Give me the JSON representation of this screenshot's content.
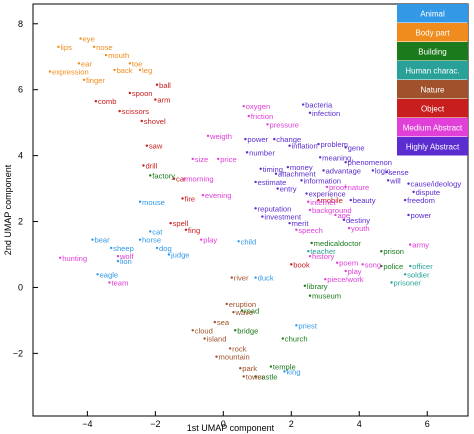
{
  "chart_data": {
    "type": "scatter",
    "xlabel": "1st UMAP component",
    "ylabel": "2nd UMAP component",
    "xlim": [
      -5.6,
      7.2
    ],
    "ylim": [
      -3.9,
      8.6
    ],
    "xticks": [
      -4,
      -2,
      0,
      2,
      4,
      6
    ],
    "yticks": [
      -2,
      0,
      2,
      4,
      6,
      8
    ],
    "grid": false,
    "legend_position": "top-right",
    "series": [
      {
        "name": "Animal",
        "color": "#3399e6",
        "points": [
          {
            "label": "mouse",
            "x": -2.45,
            "y": 2.6
          },
          {
            "label": "cat",
            "x": -2.15,
            "y": 1.7
          },
          {
            "label": "horse",
            "x": -2.45,
            "y": 1.45
          },
          {
            "label": "sheep",
            "x": -3.3,
            "y": 1.2
          },
          {
            "label": "dog",
            "x": -1.95,
            "y": 1.2
          },
          {
            "label": "bear",
            "x": -3.85,
            "y": 1.45
          },
          {
            "label": "lion",
            "x": -3.1,
            "y": 0.8
          },
          {
            "label": "eagle",
            "x": -3.7,
            "y": 0.4
          },
          {
            "label": "duck",
            "x": 0.95,
            "y": 0.3
          },
          {
            "label": "child",
            "x": 0.45,
            "y": 1.4
          },
          {
            "label": "judge",
            "x": -1.6,
            "y": 1.0
          },
          {
            "label": "priest",
            "x": 2.15,
            "y": -1.15
          },
          {
            "label": "king",
            "x": 1.8,
            "y": -2.55
          }
        ]
      },
      {
        "name": "Body part",
        "color": "#f08c1e",
        "points": [
          {
            "label": "eye",
            "x": -4.2,
            "y": 7.55
          },
          {
            "label": "lips",
            "x": -4.85,
            "y": 7.3
          },
          {
            "label": "nose",
            "x": -3.8,
            "y": 7.3
          },
          {
            "label": "mouth",
            "x": -3.45,
            "y": 7.05
          },
          {
            "label": "ear",
            "x": -4.25,
            "y": 6.8
          },
          {
            "label": "toe",
            "x": -2.75,
            "y": 6.8
          },
          {
            "label": "expression",
            "x": -5.1,
            "y": 6.55
          },
          {
            "label": "back",
            "x": -3.2,
            "y": 6.6
          },
          {
            "label": "leg",
            "x": -2.45,
            "y": 6.6
          },
          {
            "label": "finger",
            "x": -4.1,
            "y": 6.3
          }
        ]
      },
      {
        "name": "Building",
        "color": "#1b7a1b",
        "points": [
          {
            "label": "factory",
            "x": -2.15,
            "y": 3.4
          },
          {
            "label": "road",
            "x": 0.55,
            "y": -0.7
          },
          {
            "label": "bridge",
            "x": 0.35,
            "y": -1.3
          },
          {
            "label": "church",
            "x": 1.75,
            "y": -1.55
          },
          {
            "label": "temple",
            "x": 1.4,
            "y": -2.4
          },
          {
            "label": "castle",
            "x": 0.95,
            "y": -2.7
          },
          {
            "label": "library",
            "x": 2.4,
            "y": 0.05
          },
          {
            "label": "museum",
            "x": 2.55,
            "y": -0.25
          },
          {
            "label": "prison",
            "x": 4.65,
            "y": 1.1
          },
          {
            "label": "police",
            "x": 4.65,
            "y": 0.65
          },
          {
            "label": "medicaldoctor",
            "x": 2.6,
            "y": 1.35
          }
        ]
      },
      {
        "name": "Human charac.",
        "color": "#2aa198",
        "points": [
          {
            "label": "officer",
            "x": 5.5,
            "y": 0.65
          },
          {
            "label": "soldier",
            "x": 5.35,
            "y": 0.4
          },
          {
            "label": "prisoner",
            "x": 4.95,
            "y": 0.15
          },
          {
            "label": "teacher",
            "x": 2.5,
            "y": 1.1
          }
        ]
      },
      {
        "name": "Nature",
        "color": "#a0522d",
        "points": [
          {
            "label": "eruption",
            "x": 0.1,
            "y": -0.5
          },
          {
            "label": "wave",
            "x": 0.3,
            "y": -0.75
          },
          {
            "label": "sea",
            "x": -0.25,
            "y": -1.05
          },
          {
            "label": "cloud",
            "x": -0.9,
            "y": -1.3
          },
          {
            "label": "island",
            "x": -0.55,
            "y": -1.55
          },
          {
            "label": "rock",
            "x": 0.2,
            "y": -1.85
          },
          {
            "label": "mountain",
            "x": -0.2,
            "y": -2.1
          },
          {
            "label": "park",
            "x": 0.5,
            "y": -2.45
          },
          {
            "label": "tower",
            "x": 0.6,
            "y": -2.7
          },
          {
            "label": "river",
            "x": 0.25,
            "y": 0.3
          }
        ]
      },
      {
        "name": "Object",
        "color": "#c81e1e",
        "points": [
          {
            "label": "ball",
            "x": -1.95,
            "y": 6.15
          },
          {
            "label": "spoon",
            "x": -2.75,
            "y": 5.9
          },
          {
            "label": "arm",
            "x": -2.0,
            "y": 5.7
          },
          {
            "label": "comb",
            "x": -3.75,
            "y": 5.65
          },
          {
            "label": "scissors",
            "x": -3.05,
            "y": 5.35
          },
          {
            "label": "shovel",
            "x": -2.4,
            "y": 5.05
          },
          {
            "label": "saw",
            "x": -2.25,
            "y": 4.3
          },
          {
            "label": "drill",
            "x": -2.35,
            "y": 3.7
          },
          {
            "label": "car",
            "x": -1.45,
            "y": 3.3
          },
          {
            "label": "fire",
            "x": -1.2,
            "y": 2.7
          },
          {
            "label": "spell",
            "x": -1.55,
            "y": 1.95
          },
          {
            "label": "fing",
            "x": -1.1,
            "y": 1.75
          },
          {
            "label": "book",
            "x": 2.0,
            "y": 0.7
          },
          {
            "label": "mobile",
            "x": 2.8,
            "y": 2.65
          }
        ]
      },
      {
        "name": "Medium Abstract",
        "color": "#e040d8",
        "points": [
          {
            "label": "oxygen",
            "x": 0.6,
            "y": 5.5
          },
          {
            "label": "friction",
            "x": 0.75,
            "y": 5.2
          },
          {
            "label": "pressure",
            "x": 1.3,
            "y": 4.95
          },
          {
            "label": "weigth",
            "x": -0.45,
            "y": 4.6
          },
          {
            "label": "size",
            "x": -0.9,
            "y": 3.9
          },
          {
            "label": "price",
            "x": -0.15,
            "y": 3.9
          },
          {
            "label": "morning",
            "x": -1.15,
            "y": 3.3
          },
          {
            "label": "evening",
            "x": -0.6,
            "y": 2.8
          },
          {
            "label": "play",
            "x": -0.65,
            "y": 1.45
          },
          {
            "label": "hunting",
            "x": -4.8,
            "y": 0.9
          },
          {
            "label": "wolf",
            "x": -3.1,
            "y": 0.95
          },
          {
            "label": "team",
            "x": -3.35,
            "y": 0.15
          },
          {
            "label": "proof",
            "x": 3.05,
            "y": 3.05
          },
          {
            "label": "nature",
            "x": 3.6,
            "y": 3.05
          },
          {
            "label": "internet",
            "x": 2.5,
            "y": 2.6
          },
          {
            "label": "background",
            "x": 2.55,
            "y": 2.35
          },
          {
            "label": "age",
            "x": 3.3,
            "y": 2.2
          },
          {
            "label": "youth",
            "x": 3.7,
            "y": 1.8
          },
          {
            "label": "poem",
            "x": 3.35,
            "y": 0.75
          },
          {
            "label": "song",
            "x": 4.1,
            "y": 0.7
          },
          {
            "label": "play",
            "x": 3.6,
            "y": 0.5
          },
          {
            "label": "piece/work",
            "x": 3.0,
            "y": 0.25
          },
          {
            "label": "army",
            "x": 5.5,
            "y": 1.3
          },
          {
            "label": "history",
            "x": 2.55,
            "y": 0.95
          },
          {
            "label": "speech",
            "x": 2.15,
            "y": 1.75
          }
        ]
      },
      {
        "name": "Highly Abstract",
        "color": "#5b2ccf",
        "points": [
          {
            "label": "bacteria",
            "x": 2.35,
            "y": 5.55
          },
          {
            "label": "infection",
            "x": 2.55,
            "y": 5.3
          },
          {
            "label": "power",
            "x": 0.65,
            "y": 4.5
          },
          {
            "label": "change",
            "x": 1.5,
            "y": 4.5
          },
          {
            "label": "inflation",
            "x": 1.95,
            "y": 4.3
          },
          {
            "label": "problem",
            "x": 2.8,
            "y": 4.35
          },
          {
            "label": "gene",
            "x": 3.6,
            "y": 4.25
          },
          {
            "label": "number",
            "x": 0.7,
            "y": 4.1
          },
          {
            "label": "meaning",
            "x": 2.85,
            "y": 3.95
          },
          {
            "label": "phenomenon",
            "x": 3.6,
            "y": 3.8
          },
          {
            "label": "logic",
            "x": 4.4,
            "y": 3.55
          },
          {
            "label": "timing",
            "x": 1.1,
            "y": 3.6
          },
          {
            "label": "money",
            "x": 1.9,
            "y": 3.65
          },
          {
            "label": "attachment",
            "x": 1.55,
            "y": 3.45
          },
          {
            "label": "information",
            "x": 2.3,
            "y": 3.25
          },
          {
            "label": "advantage",
            "x": 2.95,
            "y": 3.55
          },
          {
            "label": "sense",
            "x": 4.8,
            "y": 3.5
          },
          {
            "label": "estimate",
            "x": 0.95,
            "y": 3.2
          },
          {
            "label": "entry",
            "x": 1.6,
            "y": 3.0
          },
          {
            "label": "experience",
            "x": 2.45,
            "y": 2.85
          },
          {
            "label": "beauty",
            "x": 3.75,
            "y": 2.65
          },
          {
            "label": "cause/ideology",
            "x": 5.45,
            "y": 3.15
          },
          {
            "label": "dispute",
            "x": 5.6,
            "y": 2.9
          },
          {
            "label": "will",
            "x": 4.85,
            "y": 3.25
          },
          {
            "label": "freedom",
            "x": 5.35,
            "y": 2.65
          },
          {
            "label": "power",
            "x": 5.45,
            "y": 2.2
          },
          {
            "label": "reputation",
            "x": 0.95,
            "y": 2.4
          },
          {
            "label": "investment",
            "x": 1.15,
            "y": 2.15
          },
          {
            "label": "merit",
            "x": 1.95,
            "y": 1.95
          },
          {
            "label": "destiny",
            "x": 3.55,
            "y": 2.05
          }
        ]
      }
    ]
  }
}
